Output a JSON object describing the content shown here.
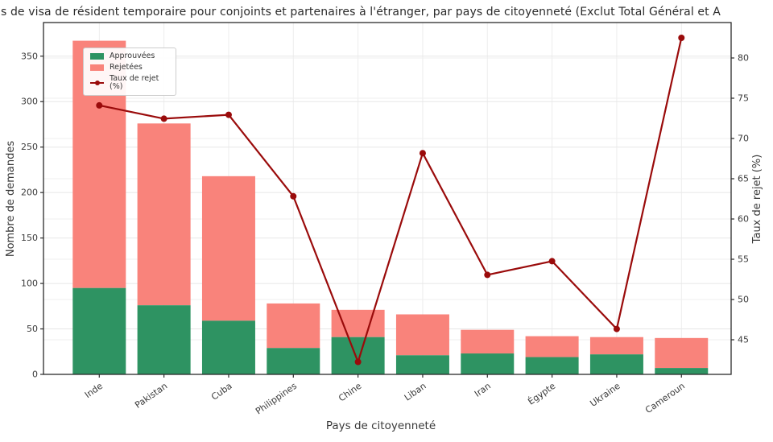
{
  "title": "s de visa de résident temporaire pour conjoints et partenaires à l'étranger, par pays de citoyenneté (Exclut Total Général et A",
  "chart_data": {
    "type": "bar",
    "subtype": "stacked-bar-with-line",
    "categories": [
      "Inde",
      "Pakistan",
      "Cuba",
      "Philippines",
      "Chine",
      "Liban",
      "Iran",
      "Égypte",
      "Ukraine",
      "Cameroun"
    ],
    "series": [
      {
        "name": "Approuvées",
        "kind": "bar",
        "stack": "demandes",
        "color": "#2e9362",
        "values": [
          95,
          76,
          59,
          29,
          41,
          21,
          23,
          19,
          22,
          7
        ]
      },
      {
        "name": "Rejetées",
        "kind": "bar",
        "stack": "demandes",
        "color": "#f9837b",
        "values": [
          272,
          200,
          159,
          49,
          30,
          45,
          26,
          23,
          19,
          33
        ]
      },
      {
        "name": "Taux de rejet (%)",
        "kind": "line",
        "axis": "right",
        "color": "#9a0b0b",
        "values": [
          74.11,
          72.46,
          72.94,
          62.82,
          42.25,
          68.18,
          53.06,
          54.76,
          46.34,
          82.5
        ]
      }
    ],
    "totals": [
      367,
      276,
      218,
      78,
      71,
      66,
      49,
      42,
      41,
      40
    ],
    "xlabel": "Pays de citoyenneté",
    "ylabel_left": "Nombre de demandes",
    "ylabel_right": "Taux de rejet (%)",
    "yticks_left": [
      0,
      50,
      100,
      150,
      200,
      250,
      300,
      350
    ],
    "yticks_right": [
      45,
      50,
      55,
      60,
      65,
      70,
      75,
      80
    ],
    "ylim_left": [
      0,
      387
    ],
    "ylim_right": [
      40.7,
      84.4
    ],
    "grid": true,
    "legend_position": "upper left",
    "colors": {
      "approved": "#2e9362",
      "rejected": "#f9837b",
      "rate_line": "#9a0b0b",
      "grid": "#e7e7e7",
      "spine": "#2b2b2b",
      "tick_text": "#3a3a3a"
    }
  }
}
